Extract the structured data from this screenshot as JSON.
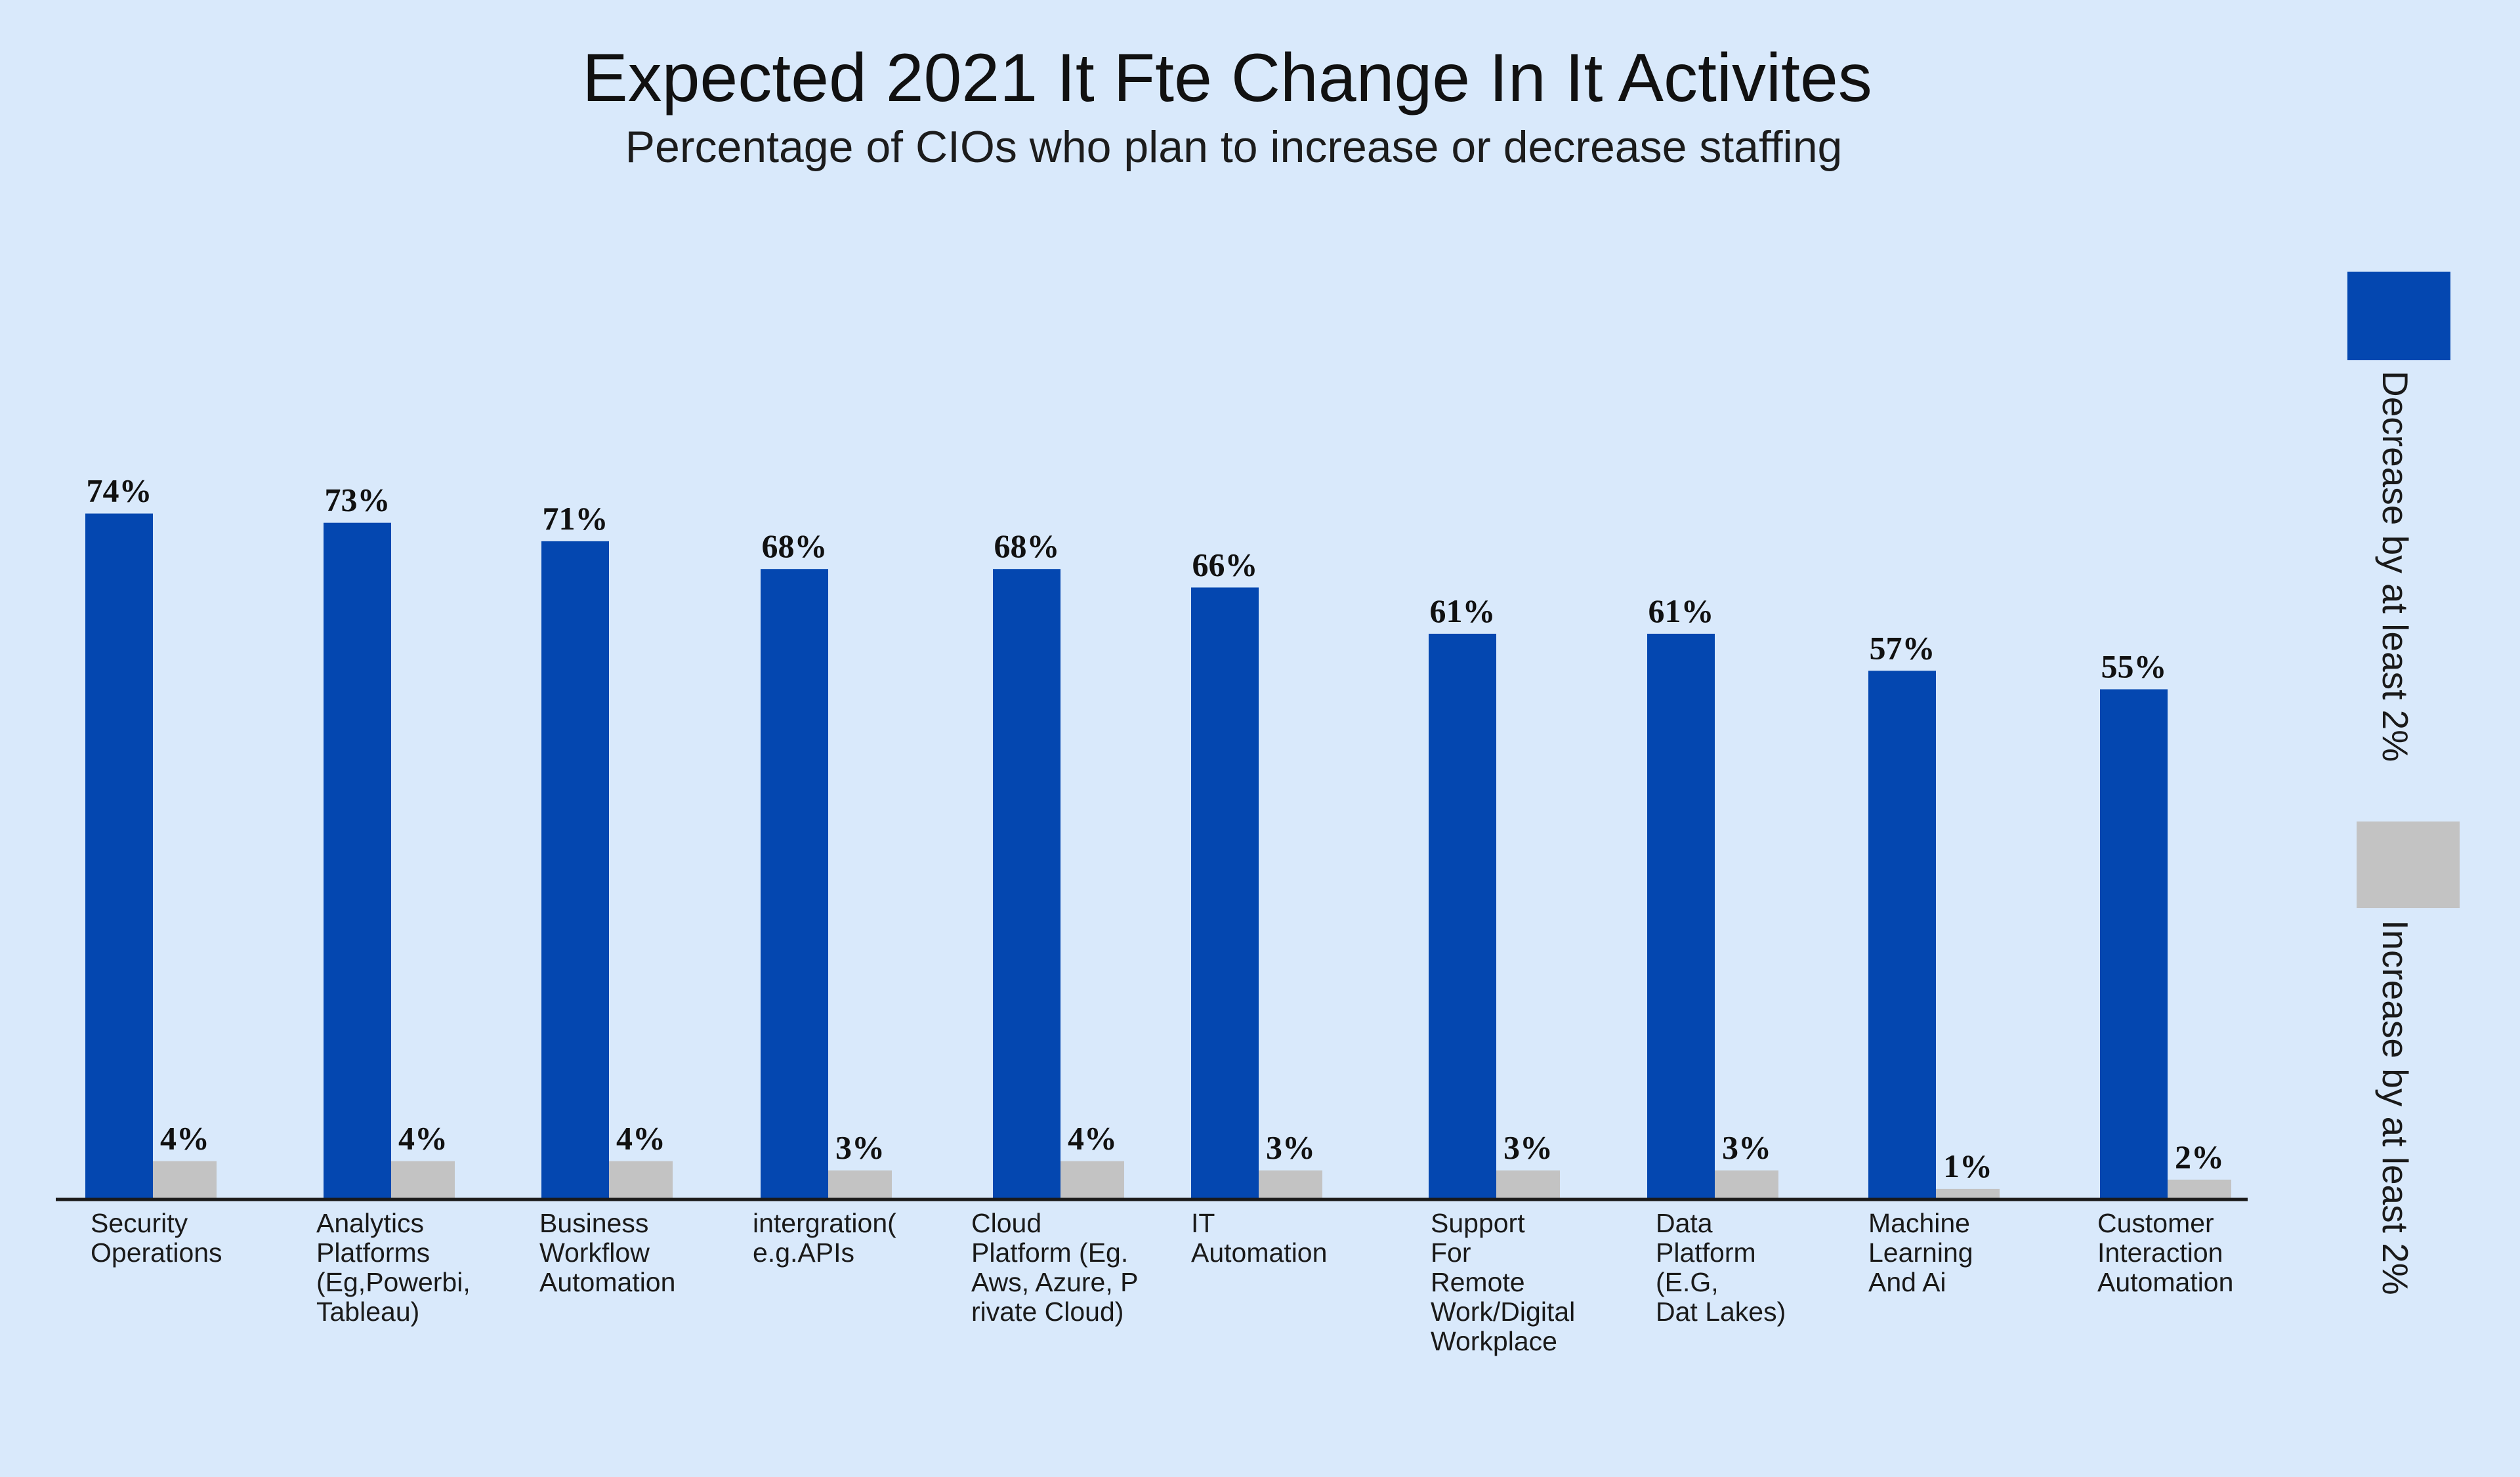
{
  "chart_data": {
    "type": "bar",
    "title": "Expected 2021 It Fte Change In It Activites",
    "subtitle": "Percentage of CIOs who plan to increase or decrease staffing",
    "xlabel": "",
    "ylabel": "",
    "ylim": [
      0,
      80
    ],
    "grid": false,
    "legend_position": "right",
    "categories": [
      [
        "Security",
        "Operations"
      ],
      [
        "Analytics",
        "Platforms",
        "(Eg,Powerbi,",
        "Tableau)"
      ],
      [
        "Business",
        "Workflow",
        "Automation"
      ],
      [
        "intergration(",
        "e.g.APIs"
      ],
      [
        "Cloud",
        "Platform (Eg.",
        "Aws, Azure, P",
        "rivate Cloud)"
      ],
      [
        "IT",
        "Automation"
      ],
      [
        "Support",
        "For",
        "Remote",
        "Work/Digital",
        "Workplace"
      ],
      [
        "Data",
        "Platform",
        "(E.G,",
        "Dat Lakes)"
      ],
      [
        "Machine",
        "Learning",
        "And Ai"
      ],
      [
        "Customer",
        "Interaction",
        "Automation"
      ]
    ],
    "series": [
      {
        "name": "Decrease by at least 2%",
        "color": "#0447b0",
        "values": [
          74,
          73,
          71,
          68,
          68,
          66,
          61,
          61,
          57,
          55
        ],
        "labels": [
          "74%",
          "73%",
          "71%",
          "68%",
          "68%",
          "66%",
          "61%",
          "61%",
          "57%",
          "55%"
        ]
      },
      {
        "name": "Increase by at least 2%",
        "color": "#c3c3c3",
        "values": [
          4,
          4,
          4,
          3,
          4,
          3,
          3,
          3,
          1,
          2
        ],
        "labels": [
          "4%",
          "4%",
          "4%",
          "3%",
          "4%",
          "3%",
          "3%",
          "3%",
          "1%",
          "2%"
        ]
      }
    ]
  }
}
